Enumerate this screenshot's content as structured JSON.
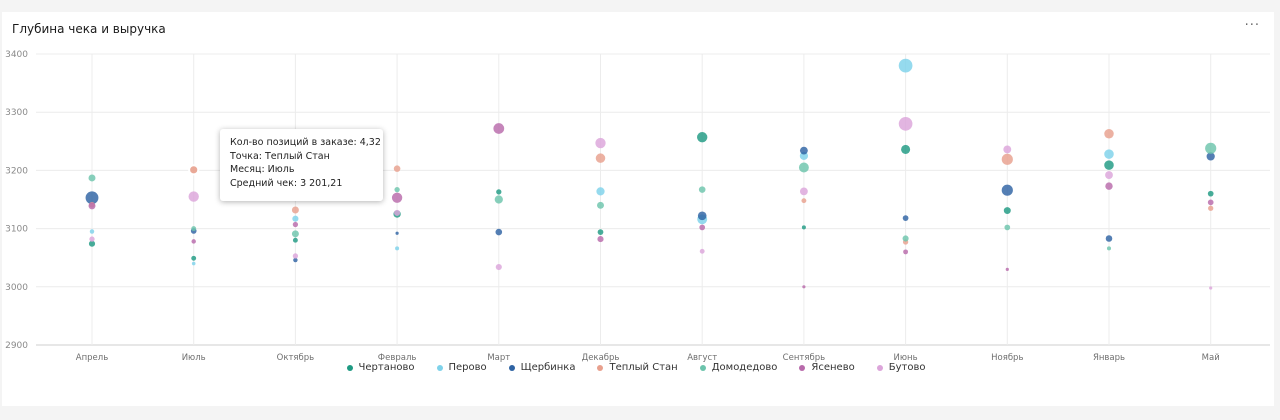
{
  "widget": {
    "title": "Глубина чека и выручка",
    "menu_label": "···"
  },
  "tooltip": {
    "rows": [
      "Кол-во позиций в заказе: 4,32",
      "Точка: Теплый Стан",
      "Месяц: Июль",
      "Средний чек: 3 201,21"
    ]
  },
  "chart_data": {
    "type": "scatter",
    "title": "Глубина чека и выручка",
    "xlabel": "",
    "ylabel": "",
    "categories": [
      "Апрель",
      "Июль",
      "Октябрь",
      "Февраль",
      "Март",
      "Декабрь",
      "Август",
      "Сентябрь",
      "Июнь",
      "Ноябрь",
      "Январь",
      "Май"
    ],
    "yticks": [
      2900,
      3000,
      3100,
      3200,
      3300,
      3400
    ],
    "ylim": [
      2900,
      3400
    ],
    "grid": true,
    "legend_position": "bottom",
    "size_meaning": "Кол-во позиций в заказе",
    "series": [
      {
        "name": "Чертаново",
        "color": "#1e9a82",
        "points": [
          {
            "x": "Апрель",
            "y": 3074,
            "size": 3.6
          },
          {
            "x": "Июль",
            "y": 3049,
            "size": 3.3
          },
          {
            "x": "Октябрь",
            "y": 3080,
            "size": 3.3
          },
          {
            "x": "Февраль",
            "y": 3125,
            "size": 3.9
          },
          {
            "x": "Март",
            "y": 3163,
            "size": 3.4
          },
          {
            "x": "Декабрь",
            "y": 3094,
            "size": 3.5
          },
          {
            "x": "Август",
            "y": 3257,
            "size": 4.6
          },
          {
            "x": "Сентябрь",
            "y": 3102,
            "size": 3.1
          },
          {
            "x": "Июнь",
            "y": 3236,
            "size": 4.3
          },
          {
            "x": "Ноябрь",
            "y": 3131,
            "size": 3.8
          },
          {
            "x": "Январь",
            "y": 3209,
            "size": 4.4
          },
          {
            "x": "Май",
            "y": 3160,
            "size": 3.5
          }
        ]
      },
      {
        "name": "Перово",
        "color": "#7ed2ea",
        "points": [
          {
            "x": "Апрель",
            "y": 3095,
            "size": 3.2
          },
          {
            "x": "Июль",
            "y": 3040,
            "size": 3.0
          },
          {
            "x": "Октябрь",
            "y": 3117,
            "size": 3.6
          },
          {
            "x": "Февраль",
            "y": 3066,
            "size": 3.1
          },
          {
            "x": "Декабрь",
            "y": 3164,
            "size": 4.1
          },
          {
            "x": "Август",
            "y": 3116,
            "size": 4.5
          },
          {
            "x": "Сентябрь",
            "y": 3225,
            "size": 4.1
          },
          {
            "x": "Июнь",
            "y": 3380,
            "size": 5.4
          },
          {
            "x": "Январь",
            "y": 3228,
            "size": 4.4
          }
        ]
      },
      {
        "name": "Щербинка",
        "color": "#2e63a3",
        "points": [
          {
            "x": "Апрель",
            "y": 3153,
            "size": 5.2
          },
          {
            "x": "Июль",
            "y": 3096,
            "size": 3.5
          },
          {
            "x": "Октябрь",
            "y": 3046,
            "size": 3.2
          },
          {
            "x": "Февраль",
            "y": 3092,
            "size": 2.9
          },
          {
            "x": "Март",
            "y": 3094,
            "size": 3.7
          },
          {
            "x": "Август",
            "y": 3122,
            "size": 4.2
          },
          {
            "x": "Сентябрь",
            "y": 3234,
            "size": 4.0
          },
          {
            "x": "Июнь",
            "y": 3118,
            "size": 3.5
          },
          {
            "x": "Ноябрь",
            "y": 3166,
            "size": 4.8
          },
          {
            "x": "Январь",
            "y": 3083,
            "size": 3.7
          },
          {
            "x": "Май",
            "y": 3224,
            "size": 4.1
          }
        ]
      },
      {
        "name": "Теплый Стан",
        "color": "#e8a08d",
        "points": [
          {
            "x": "Апрель",
            "y": 3141,
            "size": 3.5
          },
          {
            "x": "Июль",
            "y": 3201,
            "size": 4.32
          },
          {
            "x": "Октябрь",
            "y": 3132,
            "size": 3.8
          },
          {
            "x": "Февраль",
            "y": 3203,
            "size": 3.7
          },
          {
            "x": "Декабрь",
            "y": 3221,
            "size": 4.4
          },
          {
            "x": "Сентябрь",
            "y": 3148,
            "size": 3.3
          },
          {
            "x": "Июнь",
            "y": 3077,
            "size": 3.4
          },
          {
            "x": "Ноябрь",
            "y": 3219,
            "size": 4.8
          },
          {
            "x": "Январь",
            "y": 3263,
            "size": 4.4
          },
          {
            "x": "Май",
            "y": 3135,
            "size": 3.4
          }
        ]
      },
      {
        "name": "Домодедово",
        "color": "#6cc4ac",
        "points": [
          {
            "x": "Апрель",
            "y": 3187,
            "size": 3.8
          },
          {
            "x": "Июль",
            "y": 3100,
            "size": 3.3
          },
          {
            "x": "Октябрь",
            "y": 3091,
            "size": 3.8
          },
          {
            "x": "Февраль",
            "y": 3167,
            "size": 3.4
          },
          {
            "x": "Март",
            "y": 3150,
            "size": 4.1
          },
          {
            "x": "Декабрь",
            "y": 3140,
            "size": 3.8
          },
          {
            "x": "Август",
            "y": 3167,
            "size": 3.7
          },
          {
            "x": "Сентябрь",
            "y": 3205,
            "size": 4.5
          },
          {
            "x": "Июнь",
            "y": 3083,
            "size": 3.6
          },
          {
            "x": "Ноябрь",
            "y": 3102,
            "size": 3.5
          },
          {
            "x": "Январь",
            "y": 3066,
            "size": 3.1
          },
          {
            "x": "Май",
            "y": 3238,
            "size": 4.8
          }
        ]
      },
      {
        "name": "Ясенево",
        "color": "#b86aab",
        "points": [
          {
            "x": "Апрель",
            "y": 3139,
            "size": 3.8
          },
          {
            "x": "Июль",
            "y": 3078,
            "size": 3.2
          },
          {
            "x": "Октябрь",
            "y": 3107,
            "size": 3.4
          },
          {
            "x": "Февраль",
            "y": 3153,
            "size": 4.6
          },
          {
            "x": "Март",
            "y": 3272,
            "size": 4.7
          },
          {
            "x": "Декабрь",
            "y": 3082,
            "size": 3.6
          },
          {
            "x": "Август",
            "y": 3102,
            "size": 3.5
          },
          {
            "x": "Сентябрь",
            "y": 3000,
            "size": 2.9
          },
          {
            "x": "Июнь",
            "y": 3060,
            "size": 3.3
          },
          {
            "x": "Ноябрь",
            "y": 3030,
            "size": 2.9
          },
          {
            "x": "Январь",
            "y": 3173,
            "size": 3.9
          },
          {
            "x": "Май",
            "y": 3145,
            "size": 3.5
          }
        ]
      },
      {
        "name": "Бутово",
        "color": "#dca5da",
        "points": [
          {
            "x": "Апрель",
            "y": 3082,
            "size": 3.4
          },
          {
            "x": "Июль",
            "y": 3155,
            "size": 4.6
          },
          {
            "x": "Октябрь",
            "y": 3053,
            "size": 3.4
          },
          {
            "x": "Февраль",
            "y": 3127,
            "size": 3.6
          },
          {
            "x": "Март",
            "y": 3034,
            "size": 3.6
          },
          {
            "x": "Декабрь",
            "y": 3247,
            "size": 4.6
          },
          {
            "x": "Август",
            "y": 3061,
            "size": 3.3
          },
          {
            "x": "Сентябрь",
            "y": 3164,
            "size": 4.0
          },
          {
            "x": "Июнь",
            "y": 3280,
            "size": 5.4
          },
          {
            "x": "Ноябрь",
            "y": 3236,
            "size": 4.0
          },
          {
            "x": "Январь",
            "y": 3192,
            "size": 4.0
          },
          {
            "x": "Май",
            "y": 2998,
            "size": 2.9
          }
        ]
      }
    ]
  }
}
